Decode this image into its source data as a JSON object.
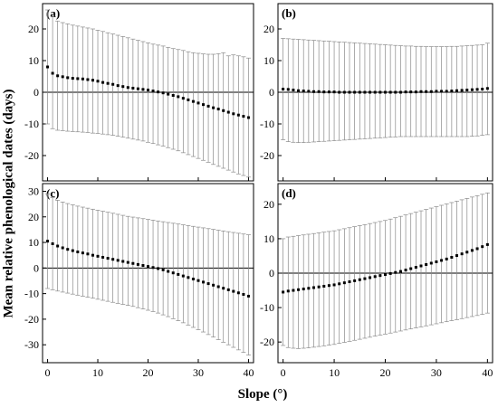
{
  "figure": {
    "ylabel": "Mean relative phenological dates (days)",
    "xlabel": "Slope (°)"
  },
  "chart_data": [
    {
      "type": "scatter",
      "panel_label": "(a)",
      "xlim": [
        -1,
        41
      ],
      "ylim": [
        -28,
        28
      ],
      "xticks": [
        0,
        10,
        20,
        30,
        40
      ],
      "yticks": [
        -20,
        -10,
        0,
        10,
        20
      ],
      "reference_line": 0,
      "error_bars": true,
      "series": [
        {
          "x": [
            0,
            1,
            2,
            3,
            4,
            5,
            6,
            7,
            8,
            9,
            10,
            11,
            12,
            13,
            14,
            15,
            16,
            17,
            18,
            19,
            20,
            21,
            22,
            23,
            24,
            25,
            26,
            27,
            28,
            29,
            30,
            31,
            32,
            33,
            34,
            35,
            36,
            37,
            38,
            39,
            40
          ],
          "y": [
            8.0,
            6.0,
            5.2,
            4.9,
            4.6,
            4.4,
            4.3,
            4.2,
            4.0,
            3.8,
            3.5,
            3.1,
            2.8,
            2.5,
            2.1,
            1.8,
            1.5,
            1.3,
            1.1,
            0.9,
            0.7,
            0.4,
            0.1,
            -0.2,
            -0.6,
            -1.0,
            -1.4,
            -1.9,
            -2.4,
            -2.9,
            -3.4,
            -3.9,
            -4.4,
            -4.9,
            -5.3,
            -5.8,
            -6.3,
            -6.8,
            -7.2,
            -7.6,
            -8.0
          ],
          "upper": [
            26.0,
            24.0,
            22.5,
            22.0,
            21.6,
            21.2,
            20.9,
            20.6,
            20.3,
            20.0,
            19.6,
            19.2,
            18.8,
            18.4,
            18.0,
            17.6,
            17.2,
            16.8,
            16.4,
            16.0,
            15.6,
            15.2,
            14.9,
            14.6,
            14.2,
            13.8,
            13.5,
            13.2,
            12.8,
            12.5,
            12.3,
            12.1,
            12.0,
            12.0,
            12.2,
            12.5,
            11.5,
            11.8,
            11.5,
            11.2,
            10.8
          ],
          "lower": [
            -10.0,
            -11.5,
            -12.0,
            -12.1,
            -12.3,
            -12.4,
            -12.5,
            -12.6,
            -12.7,
            -12.9,
            -13.0,
            -13.2,
            -13.4,
            -13.6,
            -13.9,
            -14.2,
            -14.5,
            -14.8,
            -15.1,
            -15.4,
            -15.8,
            -16.2,
            -16.6,
            -17.0,
            -17.5,
            -18.0,
            -18.5,
            -19.1,
            -19.7,
            -20.3,
            -20.9,
            -21.5,
            -22.1,
            -22.8,
            -23.4,
            -24.0,
            -24.6,
            -25.2,
            -25.8,
            -26.3,
            -26.8
          ]
        }
      ]
    },
    {
      "type": "scatter",
      "panel_label": "(b)",
      "xlim": [
        -1,
        41
      ],
      "ylim": [
        -28,
        28
      ],
      "xticks": [
        0,
        10,
        20,
        30,
        40
      ],
      "yticks": [
        -20,
        -10,
        0,
        10,
        20
      ],
      "reference_line": 0,
      "error_bars": true,
      "series": [
        {
          "x": [
            0,
            1,
            2,
            3,
            4,
            5,
            6,
            7,
            8,
            9,
            10,
            11,
            12,
            13,
            14,
            15,
            16,
            17,
            18,
            19,
            20,
            21,
            22,
            23,
            24,
            25,
            26,
            27,
            28,
            29,
            30,
            31,
            32,
            33,
            34,
            35,
            36,
            37,
            38,
            39,
            40
          ],
          "y": [
            1.0,
            0.9,
            0.7,
            0.5,
            0.4,
            0.3,
            0.2,
            0.2,
            0.1,
            0.1,
            0.1,
            0.0,
            0.0,
            0.0,
            0.0,
            0.0,
            0.0,
            0.0,
            0.0,
            0.0,
            0.0,
            0.0,
            0.0,
            0.0,
            0.1,
            0.1,
            0.1,
            0.2,
            0.2,
            0.2,
            0.3,
            0.3,
            0.3,
            0.4,
            0.5,
            0.6,
            0.7,
            0.8,
            0.9,
            1.0,
            1.2
          ],
          "upper": [
            17.0,
            16.9,
            16.8,
            16.7,
            16.6,
            16.5,
            16.4,
            16.3,
            16.2,
            16.1,
            16.0,
            15.9,
            15.8,
            15.7,
            15.6,
            15.5,
            15.4,
            15.3,
            15.2,
            15.1,
            15.0,
            14.9,
            14.8,
            14.7,
            14.6,
            14.6,
            14.5,
            14.5,
            14.4,
            14.4,
            14.4,
            14.4,
            14.4,
            14.5,
            14.5,
            14.6,
            14.7,
            14.8,
            14.9,
            15.0,
            15.5
          ],
          "lower": [
            -15.0,
            -15.6,
            -15.8,
            -15.9,
            -15.9,
            -15.8,
            -15.7,
            -15.6,
            -15.5,
            -15.4,
            -15.3,
            -15.2,
            -15.1,
            -15.0,
            -14.9,
            -14.8,
            -14.7,
            -14.6,
            -14.5,
            -14.4,
            -14.3,
            -14.2,
            -14.1,
            -14.0,
            -14.0,
            -14.0,
            -14.0,
            -14.0,
            -14.0,
            -14.0,
            -14.0,
            -14.0,
            -14.0,
            -14.0,
            -14.0,
            -14.0,
            -14.0,
            -13.9,
            -13.8,
            -13.6,
            -13.4
          ]
        }
      ]
    },
    {
      "type": "scatter",
      "panel_label": "(c)",
      "xlim": [
        -1,
        41
      ],
      "ylim": [
        -37,
        33
      ],
      "xticks": [
        0,
        10,
        20,
        30,
        40
      ],
      "yticks": [
        -30,
        -20,
        -10,
        0,
        10,
        20,
        30
      ],
      "reference_line": 0,
      "error_bars": true,
      "series": [
        {
          "x": [
            0,
            1,
            2,
            3,
            4,
            5,
            6,
            7,
            8,
            9,
            10,
            11,
            12,
            13,
            14,
            15,
            16,
            17,
            18,
            19,
            20,
            21,
            22,
            23,
            24,
            25,
            26,
            27,
            28,
            29,
            30,
            31,
            32,
            33,
            34,
            35,
            36,
            37,
            38,
            39,
            40
          ],
          "y": [
            10.5,
            9.5,
            8.6,
            7.9,
            7.3,
            6.8,
            6.3,
            5.9,
            5.5,
            5.0,
            4.6,
            4.2,
            3.8,
            3.4,
            3.0,
            2.6,
            2.2,
            1.8,
            1.4,
            1.0,
            0.6,
            0.2,
            -0.2,
            -0.7,
            -1.3,
            -1.9,
            -2.5,
            -3.1,
            -3.7,
            -4.3,
            -4.9,
            -5.5,
            -6.1,
            -6.7,
            -7.3,
            -7.9,
            -8.5,
            -9.1,
            -9.7,
            -10.3,
            -11.0
          ],
          "upper": [
            29.0,
            27.5,
            26.5,
            25.8,
            25.2,
            24.7,
            24.2,
            23.8,
            23.4,
            23.0,
            22.6,
            22.2,
            21.8,
            21.4,
            21.0,
            20.6,
            20.2,
            19.9,
            19.6,
            19.3,
            19.0,
            18.7,
            18.4,
            18.1,
            17.8,
            17.5,
            17.2,
            16.9,
            16.6,
            16.3,
            16.0,
            15.7,
            15.4,
            15.1,
            14.8,
            14.5,
            14.2,
            13.9,
            13.6,
            13.3,
            13.0
          ],
          "lower": [
            -8.0,
            -8.5,
            -9.0,
            -9.4,
            -9.8,
            -10.2,
            -10.6,
            -11.0,
            -11.4,
            -11.8,
            -12.2,
            -12.6,
            -13.0,
            -13.4,
            -13.8,
            -14.2,
            -14.6,
            -15.0,
            -15.5,
            -16.0,
            -16.5,
            -17.0,
            -17.6,
            -18.3,
            -19.0,
            -19.8,
            -20.6,
            -21.4,
            -22.3,
            -23.2,
            -24.1,
            -25.0,
            -26.0,
            -27.0,
            -28.0,
            -29.0,
            -30.0,
            -31.0,
            -32.0,
            -33.0,
            -34.0
          ]
        }
      ]
    },
    {
      "type": "scatter",
      "panel_label": "(d)",
      "xlim": [
        -1,
        41
      ],
      "ylim": [
        -26,
        26
      ],
      "xticks": [
        0,
        10,
        20,
        30,
        40
      ],
      "yticks": [
        -20,
        -10,
        0,
        10,
        20
      ],
      "reference_line": 0,
      "error_bars": true,
      "series": [
        {
          "x": [
            0,
            1,
            2,
            3,
            4,
            5,
            6,
            7,
            8,
            9,
            10,
            11,
            12,
            13,
            14,
            15,
            16,
            17,
            18,
            19,
            20,
            21,
            22,
            23,
            24,
            25,
            26,
            27,
            28,
            29,
            30,
            31,
            32,
            33,
            34,
            35,
            36,
            37,
            38,
            39,
            40
          ],
          "y": [
            -5.5,
            -5.2,
            -5.0,
            -4.8,
            -4.6,
            -4.4,
            -4.2,
            -4.0,
            -3.8,
            -3.6,
            -3.4,
            -3.1,
            -2.8,
            -2.5,
            -2.2,
            -1.9,
            -1.6,
            -1.3,
            -1.0,
            -0.7,
            -0.4,
            -0.1,
            0.2,
            0.5,
            0.9,
            1.3,
            1.7,
            2.1,
            2.5,
            2.9,
            3.3,
            3.7,
            4.1,
            4.6,
            5.1,
            5.6,
            6.1,
            6.6,
            7.1,
            7.7,
            8.3
          ],
          "upper": [
            10.0,
            10.5,
            10.7,
            10.9,
            11.1,
            11.3,
            11.5,
            11.7,
            11.9,
            12.1,
            12.3,
            12.6,
            12.9,
            13.2,
            13.5,
            13.8,
            14.1,
            14.4,
            14.7,
            15.0,
            15.3,
            15.7,
            16.1,
            16.5,
            16.9,
            17.3,
            17.7,
            18.1,
            18.5,
            18.9,
            19.3,
            19.7,
            20.1,
            20.5,
            20.9,
            21.3,
            21.7,
            22.1,
            22.5,
            22.9,
            23.3
          ],
          "lower": [
            -21.0,
            -21.6,
            -21.8,
            -21.9,
            -21.8,
            -21.7,
            -21.5,
            -21.3,
            -21.1,
            -20.9,
            -20.7,
            -20.4,
            -20.1,
            -19.8,
            -19.5,
            -19.2,
            -18.9,
            -18.6,
            -18.3,
            -18.0,
            -17.7,
            -17.4,
            -17.1,
            -16.8,
            -16.5,
            -16.2,
            -15.9,
            -15.6,
            -15.3,
            -15.0,
            -14.7,
            -14.4,
            -14.1,
            -13.8,
            -13.5,
            -13.2,
            -12.9,
            -12.6,
            -12.3,
            -12.0,
            -11.6
          ]
        }
      ]
    }
  ]
}
